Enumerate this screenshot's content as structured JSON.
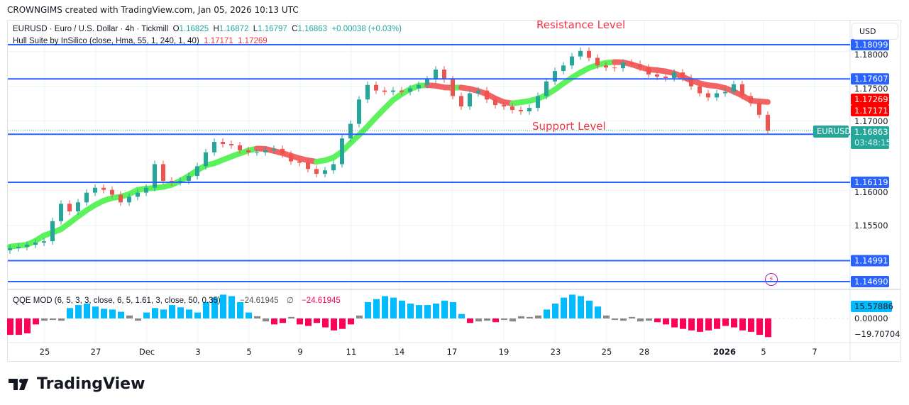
{
  "credit": "CROWNGIMS created with TradingView.com, Jan 05, 2026 10:13 UTC",
  "symbol_legend": {
    "title": "EURUSD · Euro / U.S. Dollar · 4h · Tickmill",
    "o_label": "O",
    "o": "1.16825",
    "h_label": "H",
    "h": "1.16872",
    "l_label": "L",
    "l": "1.16797",
    "c_label": "C",
    "c": "1.16863",
    "change": "+0.00038 (+0.03%)"
  },
  "hull_legend": {
    "title": "Hull Suite by InSilico (close, Hma, 55, 1, 240, 1, 40)",
    "v1": "1.17171",
    "v2": "1.17269"
  },
  "qqe_legend": {
    "title": "QQE MOD (6, 5, 3, 3, close, 6, 5, 1.61, 3, close, 50, 0.35)",
    "v1": "−24.61945",
    "sym": "∅",
    "v2": "−24.61945"
  },
  "annotations": {
    "resistance": "Resistance Level",
    "support": "Support Level"
  },
  "currency_button": "USD",
  "price_axis": {
    "ticks": [
      "1.18000",
      "1.17500",
      "1.17000",
      "1.16000",
      "1.15500"
    ],
    "tick_values": [
      1.18,
      1.175,
      1.17,
      1.16,
      1.155
    ]
  },
  "levels": [
    {
      "value": 1.18099,
      "label": "1.18099"
    },
    {
      "value": 1.17607,
      "label": "1.17607"
    },
    {
      "value": 1.1681,
      "label": "1.16810"
    },
    {
      "value": 1.16119,
      "label": "1.16119"
    },
    {
      "value": 1.14991,
      "label": "1.14991"
    },
    {
      "value": 1.1469,
      "label": "1.14690"
    }
  ],
  "hull_tags": {
    "upper": "1.17269",
    "lower": "1.17171"
  },
  "current": {
    "symbol": "EURUSD",
    "price": 1.16863,
    "label": "1.16863",
    "countdown": "03:48:15"
  },
  "qqe_axis": {
    "top": "15.57886",
    "zero": "0.00000",
    "bottom": "−19.70704"
  },
  "time_axis": [
    "25",
    "27",
    "Dec",
    "3",
    "5",
    "9",
    "11",
    "14",
    "17",
    "19",
    "23",
    "25",
    "28",
    "2026",
    "5",
    "7"
  ],
  "brand": "TradingView",
  "colors": {
    "up": "#26a69a",
    "down": "#ef5350",
    "level": "#2962ff",
    "hull_up": "#5cf25c",
    "hull_down": "#f26464",
    "qqe_up": "#00bcff",
    "qqe_down": "#ff0055",
    "qqe_neutral": "#888888",
    "resistance": "#f23645"
  },
  "chart_data": {
    "type": "candlestick",
    "ylim": [
      1.1455,
      1.1835
    ],
    "grid": true,
    "closes": [
      1.1517,
      1.1519,
      1.1522,
      1.1525,
      1.1527,
      1.1556,
      1.1581,
      1.157,
      1.1583,
      1.1597,
      1.1604,
      1.1601,
      1.1594,
      1.1583,
      1.1591,
      1.1597,
      1.1604,
      1.1638,
      1.1614,
      1.1612,
      1.1614,
      1.1621,
      1.1635,
      1.1655,
      1.167,
      1.1667,
      1.1665,
      1.1658,
      1.1655,
      1.1655,
      1.1658,
      1.166,
      1.1652,
      1.1642,
      1.164,
      1.1631,
      1.1624,
      1.1629,
      1.1638,
      1.1675,
      1.1696,
      1.1731,
      1.1752,
      1.1744,
      1.1742,
      1.1744,
      1.1742,
      1.1747,
      1.1752,
      1.176,
      1.1774,
      1.176,
      1.1736,
      1.1721,
      1.174,
      1.1744,
      1.1731,
      1.1723,
      1.1721,
      1.1716,
      1.1714,
      1.1719,
      1.1736,
      1.1757,
      1.1772,
      1.178,
      1.1793,
      1.1801,
      1.1791,
      1.178,
      1.1777,
      1.1776,
      1.1784,
      1.1782,
      1.1777,
      1.1767,
      1.1764,
      1.1762,
      1.177,
      1.1762,
      1.175,
      1.174,
      1.1734,
      1.174,
      1.1742,
      1.1753,
      1.1736,
      1.1726,
      1.1709,
      1.1686
    ],
    "qqe": [
      -22,
      -22,
      -20,
      -8,
      -3,
      -2,
      -3,
      14,
      18,
      20,
      16,
      13,
      12,
      9,
      4,
      -3,
      8,
      14,
      12,
      18,
      15,
      12,
      8,
      22,
      28,
      32,
      30,
      22,
      8,
      3,
      -4,
      -8,
      -6,
      2,
      -8,
      -10,
      -6,
      -12,
      -16,
      -14,
      -8,
      4,
      22,
      26,
      30,
      28,
      24,
      20,
      18,
      18,
      20,
      24,
      22,
      6,
      -6,
      -4,
      -3,
      -5,
      -2,
      -4,
      3,
      2,
      4,
      12,
      20,
      28,
      32,
      30,
      24,
      16,
      4,
      -2,
      -3,
      2,
      -4,
      -3,
      -5,
      -8,
      -12,
      -14,
      -16,
      -18,
      -16,
      -14,
      -10,
      -12,
      -16,
      -18,
      -22,
      -25
    ]
  }
}
